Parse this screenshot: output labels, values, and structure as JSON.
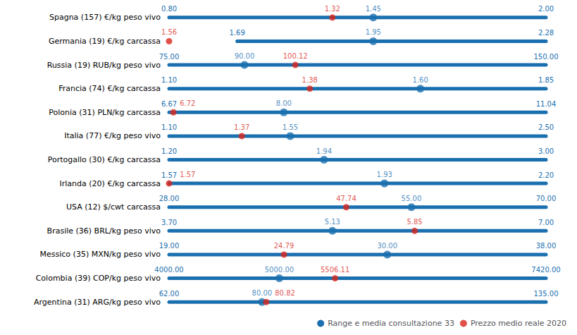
{
  "chart_data": [
    {
      "type": "range",
      "orientation": "horizontal",
      "categories": [
        "Spagna (157) €/kg peso vivo"
      ],
      "xlim": [
        0.8,
        2.0
      ],
      "tick_labels": "y",
      "grid": false,
      "data_labels": true,
      "series": [
        {
          "name": "Range e media consultazione 33",
          "color": "#1a6faf",
          "values": [
            1.45
          ],
          "value_labels": [
            "1.45"
          ],
          "low": [
            0.8
          ],
          "low_labels": [
            "0.80"
          ],
          "high": [
            2.0
          ],
          "high_labels": [
            "2.00"
          ]
        },
        {
          "name": "Prezzo medio reale 2020",
          "color": "#d9261c",
          "values": [
            1.32
          ],
          "value_labels": [
            "1.32"
          ]
        }
      ]
    },
    {
      "type": "range",
      "orientation": "horizontal",
      "categories": [
        "Germania (19) €/kg carcassa"
      ],
      "xlim": [
        1.56,
        2.28
      ],
      "tick_labels": "y",
      "grid": false,
      "data_labels": true,
      "series": [
        {
          "name": "Range e media consultazione 33",
          "color": "#1a6faf",
          "values": [
            1.95
          ],
          "value_labels": [
            "1.95"
          ],
          "low": [
            1.69
          ],
          "low_labels": [
            "1.69"
          ],
          "high": [
            2.28
          ],
          "high_labels": [
            "2.28"
          ]
        },
        {
          "name": "Prezzo medio reale 2020",
          "color": "#d9261c",
          "values": [
            1.56
          ],
          "value_labels": [
            "1.56"
          ]
        }
      ]
    },
    {
      "type": "range",
      "orientation": "horizontal",
      "categories": [
        "Russia (19) RUB/kg peso vivo"
      ],
      "xlim": [
        75.0,
        150.0
      ],
      "tick_labels": "y",
      "grid": false,
      "data_labels": true,
      "series": [
        {
          "name": "Range e media consultazione 33",
          "color": "#1a6faf",
          "values": [
            90.0
          ],
          "value_labels": [
            "90.00"
          ],
          "low": [
            75.0
          ],
          "low_labels": [
            "75.00"
          ],
          "high": [
            150.0
          ],
          "high_labels": [
            "150.00"
          ]
        },
        {
          "name": "Prezzo medio reale 2020",
          "color": "#d9261c",
          "values": [
            100.12
          ],
          "value_labels": [
            "100.12"
          ]
        }
      ]
    },
    {
      "type": "range",
      "orientation": "horizontal",
      "categories": [
        "Francia (74) €/kg carcassa"
      ],
      "xlim": [
        1.1,
        1.85
      ],
      "tick_labels": "y",
      "grid": false,
      "data_labels": true,
      "series": [
        {
          "name": "Range e media consultazione 33",
          "color": "#1a6faf",
          "values": [
            1.6
          ],
          "value_labels": [
            "1.60"
          ],
          "low": [
            1.1
          ],
          "low_labels": [
            "1.10"
          ],
          "high": [
            1.85
          ],
          "high_labels": [
            "1.85"
          ]
        },
        {
          "name": "Prezzo medio reale 2020",
          "color": "#d9261c",
          "values": [
            1.38
          ],
          "value_labels": [
            "1.38"
          ]
        }
      ]
    },
    {
      "type": "range",
      "orientation": "horizontal",
      "categories": [
        "Polonia (31) PLN/kg carcassa"
      ],
      "xlim": [
        6.67,
        11.04
      ],
      "tick_labels": "y",
      "grid": false,
      "data_labels": true,
      "series": [
        {
          "name": "Range e media consultazione 33",
          "color": "#1a6faf",
          "values": [
            8.0
          ],
          "value_labels": [
            "8.00"
          ],
          "low": [
            6.67
          ],
          "low_labels": [
            "6.67"
          ],
          "high": [
            11.04
          ],
          "high_labels": [
            "11.04"
          ]
        },
        {
          "name": "Prezzo medio reale 2020",
          "color": "#d9261c",
          "values": [
            6.72
          ],
          "value_labels": [
            "6.72"
          ]
        }
      ]
    },
    {
      "type": "range",
      "orientation": "horizontal",
      "categories": [
        "Italia (77) €/kg peso vivo"
      ],
      "xlim": [
        1.1,
        2.5
      ],
      "tick_labels": "y",
      "grid": false,
      "data_labels": true,
      "series": [
        {
          "name": "Range e media consultazione 33",
          "color": "#1a6faf",
          "values": [
            1.55
          ],
          "value_labels": [
            "1.55"
          ],
          "low": [
            1.1
          ],
          "low_labels": [
            "1.10"
          ],
          "high": [
            2.5
          ],
          "high_labels": [
            "2.50"
          ]
        },
        {
          "name": "Prezzo medio reale 2020",
          "color": "#d9261c",
          "values": [
            1.37
          ],
          "value_labels": [
            "1.37"
          ]
        }
      ]
    },
    {
      "type": "range",
      "orientation": "horizontal",
      "categories": [
        "Portogallo (30) €/kg carcassa"
      ],
      "xlim": [
        1.2,
        3.0
      ],
      "tick_labels": "y",
      "grid": false,
      "data_labels": true,
      "series": [
        {
          "name": "Range e media consultazione 33",
          "color": "#1a6faf",
          "values": [
            1.94
          ],
          "value_labels": [
            "1.94"
          ],
          "low": [
            1.2
          ],
          "low_labels": [
            "1.20"
          ],
          "high": [
            3.0
          ],
          "high_labels": [
            "3.00"
          ]
        },
        {
          "name": "Prezzo medio reale 2020",
          "color": "#d9261c",
          "values": [
            null
          ],
          "value_labels": [
            null
          ]
        }
      ]
    },
    {
      "type": "range",
      "orientation": "horizontal",
      "categories": [
        "Irlanda (20) €/kg carcassa"
      ],
      "xlim": [
        1.57,
        2.2
      ],
      "tick_labels": "y",
      "grid": false,
      "data_labels": true,
      "series": [
        {
          "name": "Range e media consultazione 33",
          "color": "#1a6faf",
          "values": [
            1.93
          ],
          "value_labels": [
            "1.93"
          ],
          "low": [
            1.57
          ],
          "low_labels": [
            "1.57"
          ],
          "high": [
            2.2
          ],
          "high_labels": [
            "2.20"
          ]
        },
        {
          "name": "Prezzo medio reale 2020",
          "color": "#d9261c",
          "values": [
            1.57
          ],
          "value_labels": [
            "1.57"
          ]
        }
      ]
    },
    {
      "type": "range",
      "orientation": "horizontal",
      "categories": [
        "USA (12) $/cwt carcassa"
      ],
      "xlim": [
        28.0,
        70.0
      ],
      "tick_labels": "y",
      "grid": false,
      "data_labels": true,
      "series": [
        {
          "name": "Range e media consultazione 33",
          "color": "#1a6faf",
          "values": [
            55.0
          ],
          "value_labels": [
            "55.00"
          ],
          "low": [
            28.0
          ],
          "low_labels": [
            "28.00"
          ],
          "high": [
            70.0
          ],
          "high_labels": [
            "70.00"
          ]
        },
        {
          "name": "Prezzo medio reale 2020",
          "color": "#d9261c",
          "values": [
            47.74
          ],
          "value_labels": [
            "47.74"
          ]
        }
      ]
    },
    {
      "type": "range",
      "orientation": "horizontal",
      "categories": [
        "Brasile (36) BRL/kg peso vivo"
      ],
      "xlim": [
        3.7,
        7.0
      ],
      "tick_labels": "y",
      "grid": false,
      "data_labels": true,
      "series": [
        {
          "name": "Range e media consultazione 33",
          "color": "#1a6faf",
          "values": [
            5.13
          ],
          "value_labels": [
            "5.13"
          ],
          "low": [
            3.7
          ],
          "low_labels": [
            "3.70"
          ],
          "high": [
            7.0
          ],
          "high_labels": [
            "7.00"
          ]
        },
        {
          "name": "Prezzo medio reale 2020",
          "color": "#d9261c",
          "values": [
            5.85
          ],
          "value_labels": [
            "5.85"
          ]
        }
      ]
    },
    {
      "type": "range",
      "orientation": "horizontal",
      "categories": [
        "Messico (35) MXN/kg peso vivo"
      ],
      "xlim": [
        19.0,
        38.0
      ],
      "tick_labels": "y",
      "grid": false,
      "data_labels": true,
      "series": [
        {
          "name": "Range e media consultazione 33",
          "color": "#1a6faf",
          "values": [
            30.0
          ],
          "value_labels": [
            "30.00"
          ],
          "low": [
            19.0
          ],
          "low_labels": [
            "19.00"
          ],
          "high": [
            38.0
          ],
          "high_labels": [
            "38.00"
          ]
        },
        {
          "name": "Prezzo medio reale 2020",
          "color": "#d9261c",
          "values": [
            24.79
          ],
          "value_labels": [
            "24.79"
          ]
        }
      ]
    },
    {
      "type": "range",
      "orientation": "horizontal",
      "categories": [
        "Colombia (39) COP/kg peso vivo"
      ],
      "xlim": [
        4000.0,
        7420.0
      ],
      "tick_labels": "y",
      "grid": false,
      "data_labels": true,
      "series": [
        {
          "name": "Range e media consultazione 33",
          "color": "#1a6faf",
          "values": [
            5000.0
          ],
          "value_labels": [
            "5000.00"
          ],
          "low": [
            4000.0
          ],
          "low_labels": [
            "4000.00"
          ],
          "high": [
            7420.0
          ],
          "high_labels": [
            "7420.00"
          ]
        },
        {
          "name": "Prezzo medio reale 2020",
          "color": "#d9261c",
          "values": [
            5506.11
          ],
          "value_labels": [
            "5506.11"
          ]
        }
      ]
    },
    {
      "type": "range",
      "orientation": "horizontal",
      "categories": [
        "Argentina (31) ARG/kg peso vivo"
      ],
      "xlim": [
        62.0,
        135.0
      ],
      "tick_labels": "y",
      "grid": false,
      "data_labels": true,
      "legend": "lower right",
      "series": [
        {
          "name": "Range e media consultazione 33",
          "color": "#1a6faf",
          "values": [
            80.0
          ],
          "value_labels": [
            "80.00"
          ],
          "low": [
            62.0
          ],
          "low_labels": [
            "62.00"
          ],
          "high": [
            135.0
          ],
          "high_labels": [
            "135.00"
          ]
        },
        {
          "name": "Prezzo medio reale 2020",
          "color": "#d9261c",
          "values": [
            80.82
          ],
          "value_labels": [
            "80.82"
          ]
        }
      ]
    }
  ]
}
